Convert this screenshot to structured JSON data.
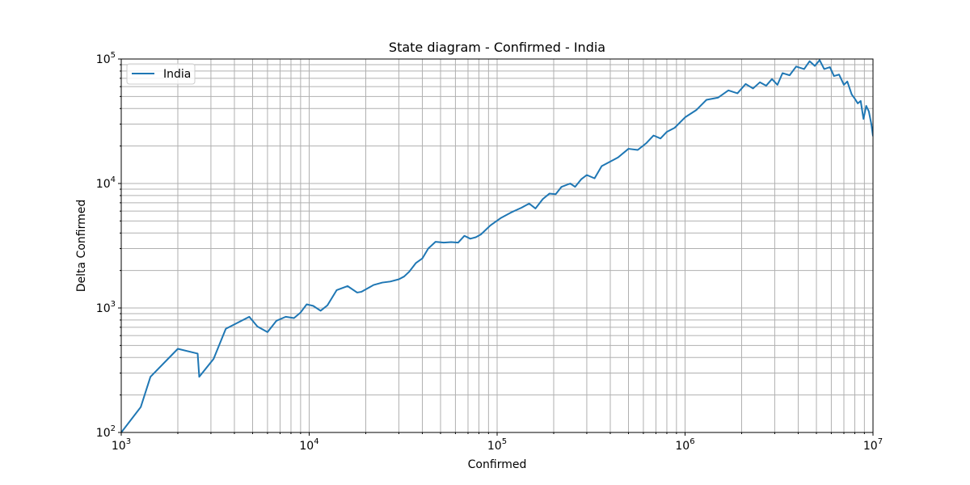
{
  "chart_data": {
    "type": "line",
    "title": "State diagram - Confirmed - India",
    "xlabel": "Confirmed",
    "ylabel": "Delta Confirmed",
    "xscale": "log",
    "yscale": "log",
    "xlim": [
      1000,
      10000000
    ],
    "ylim": [
      100,
      100000
    ],
    "x_ticks": [
      {
        "base": "10",
        "exp": "3",
        "value": 1000
      },
      {
        "base": "10",
        "exp": "4",
        "value": 10000
      },
      {
        "base": "10",
        "exp": "5",
        "value": 100000
      },
      {
        "base": "10",
        "exp": "6",
        "value": 1000000
      },
      {
        "base": "10",
        "exp": "7",
        "value": 10000000
      }
    ],
    "y_ticks": [
      {
        "base": "10",
        "exp": "2",
        "value": 100
      },
      {
        "base": "10",
        "exp": "3",
        "value": 1000
      },
      {
        "base": "10",
        "exp": "4",
        "value": 10000
      },
      {
        "base": "10",
        "exp": "5",
        "value": 100000
      }
    ],
    "grid": true,
    "grid_minor": true,
    "legend_position": "upper-left",
    "series": [
      {
        "name": "India",
        "color": "#1f77b4",
        "x": [
          1000,
          1270,
          1430,
          2000,
          2550,
          2600,
          3100,
          3600,
          4800,
          5300,
          6000,
          6700,
          7500,
          8300,
          9000,
          9700,
          10500,
          11500,
          12500,
          14000,
          16000,
          18000,
          19000,
          21000,
          22000,
          24500,
          27000,
          30000,
          32000,
          34000,
          37000,
          40000,
          43000,
          47000,
          52000,
          57000,
          62000,
          67000,
          72000,
          77000,
          82000,
          92000,
          105000,
          120000,
          135000,
          148000,
          160000,
          175000,
          190000,
          205000,
          220000,
          245000,
          260000,
          280000,
          300000,
          330000,
          360000,
          400000,
          440000,
          500000,
          560000,
          620000,
          680000,
          740000,
          800000,
          880000,
          1000000,
          1150000,
          1300000,
          1500000,
          1700000,
          1900000,
          2100000,
          2300000,
          2500000,
          2700000,
          2900000,
          3100000,
          3300000,
          3600000,
          3900000,
          4300000,
          4600000,
          4900000,
          5200000,
          5500000,
          5900000,
          6200000,
          6600000,
          7000000,
          7300000,
          7700000,
          8000000,
          8300000,
          8600000,
          8900000,
          9200000,
          9500000,
          9800000,
          10000000
        ],
        "y": [
          100,
          160,
          280,
          470,
          430,
          280,
          390,
          680,
          850,
          710,
          640,
          790,
          850,
          830,
          920,
          1070,
          1040,
          950,
          1050,
          1390,
          1500,
          1330,
          1350,
          1470,
          1530,
          1600,
          1630,
          1700,
          1790,
          1950,
          2300,
          2500,
          3000,
          3400,
          3350,
          3380,
          3350,
          3800,
          3600,
          3700,
          3900,
          4600,
          5300,
          5900,
          6400,
          6900,
          6300,
          7500,
          8300,
          8200,
          9400,
          10000,
          9400,
          10800,
          11700,
          11000,
          13800,
          15000,
          16200,
          19000,
          18600,
          21000,
          24300,
          23000,
          26000,
          28000,
          34000,
          39000,
          47000,
          49000,
          56000,
          53000,
          63000,
          58000,
          65000,
          61000,
          69000,
          62000,
          77000,
          74000,
          87000,
          83000,
          96000,
          88000,
          98000,
          83000,
          86000,
          73000,
          75000,
          62000,
          66000,
          52000,
          48000,
          44000,
          46000,
          33000,
          42000,
          38000,
          30000,
          24000
        ]
      }
    ]
  }
}
